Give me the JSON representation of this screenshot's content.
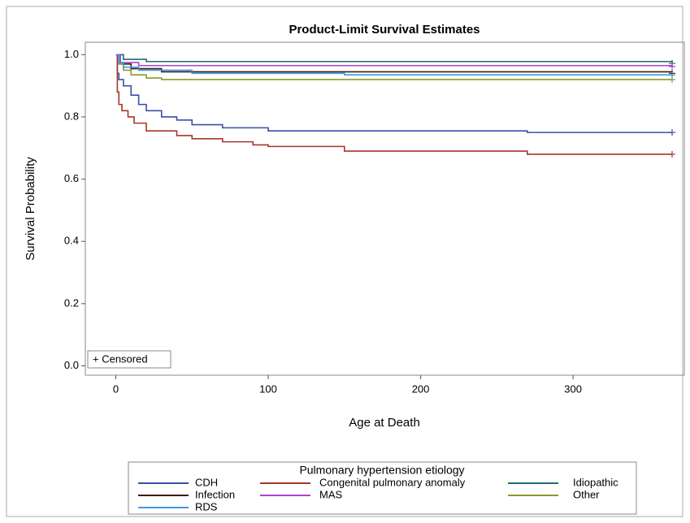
{
  "chart_data": {
    "type": "step-line",
    "title": "Product-Limit Survival Estimates",
    "x_label": "Age at Death",
    "y_label": "Survival Probability",
    "annotation": "+ Censored",
    "legend_title": "Pulmonary hypertension etiology",
    "xlim": [
      -20,
      373
    ],
    "xticks": [
      0,
      100,
      200,
      300
    ],
    "ylim": [
      -0.03,
      1.04
    ],
    "yticks": [
      {
        "value": 0,
        "label": "0.0"
      },
      {
        "value": 0.2,
        "label": "0.2"
      },
      {
        "value": 0.4,
        "label": "0.4"
      },
      {
        "value": 0.6,
        "label": "0.6"
      },
      {
        "value": 0.8,
        "label": "0.8"
      },
      {
        "value": 1,
        "label": "1.0"
      }
    ],
    "series": [
      {
        "name": "CDH",
        "color": "#3b4fa8",
        "x": [
          0,
          1,
          2,
          5,
          10,
          15,
          20,
          30,
          40,
          50,
          70,
          100,
          150,
          270,
          365
        ],
        "values": [
          1,
          0.94,
          0.92,
          0.9,
          0.87,
          0.84,
          0.82,
          0.8,
          0.79,
          0.775,
          0.765,
          0.755,
          0.755,
          0.75,
          0.75
        ]
      },
      {
        "name": "Congenital pulmonary anomaly",
        "color": "#a8362a",
        "x": [
          0,
          1,
          2,
          4,
          8,
          12,
          20,
          40,
          50,
          70,
          90,
          100,
          150,
          200,
          270,
          365
        ],
        "values": [
          1,
          0.88,
          0.84,
          0.82,
          0.8,
          0.78,
          0.755,
          0.74,
          0.73,
          0.72,
          0.71,
          0.705,
          0.69,
          0.69,
          0.68,
          0.68
        ]
      },
      {
        "name": "Idiopathic",
        "color": "#1f6e6a",
        "x": [
          0,
          5,
          20,
          365
        ],
        "values": [
          1,
          0.985,
          0.978,
          0.972
        ]
      },
      {
        "name": "Infection",
        "color": "#3d1a0f",
        "x": [
          0,
          3,
          10,
          30,
          365
        ],
        "values": [
          1,
          0.97,
          0.955,
          0.945,
          0.94
        ]
      },
      {
        "name": "MAS",
        "color": "#b040d0",
        "x": [
          0,
          3,
          15,
          365
        ],
        "values": [
          1,
          0.975,
          0.965,
          0.962
        ]
      },
      {
        "name": "Other",
        "color": "#8a9a2a",
        "x": [
          0,
          2,
          5,
          10,
          20,
          30,
          365
        ],
        "values": [
          1,
          0.97,
          0.95,
          0.935,
          0.925,
          0.92,
          0.92
        ]
      },
      {
        "name": "RDS",
        "color": "#3a9ae8",
        "x": [
          0,
          2,
          5,
          15,
          50,
          150,
          365
        ],
        "values": [
          1,
          0.975,
          0.96,
          0.95,
          0.94,
          0.935,
          0.935
        ]
      }
    ]
  }
}
